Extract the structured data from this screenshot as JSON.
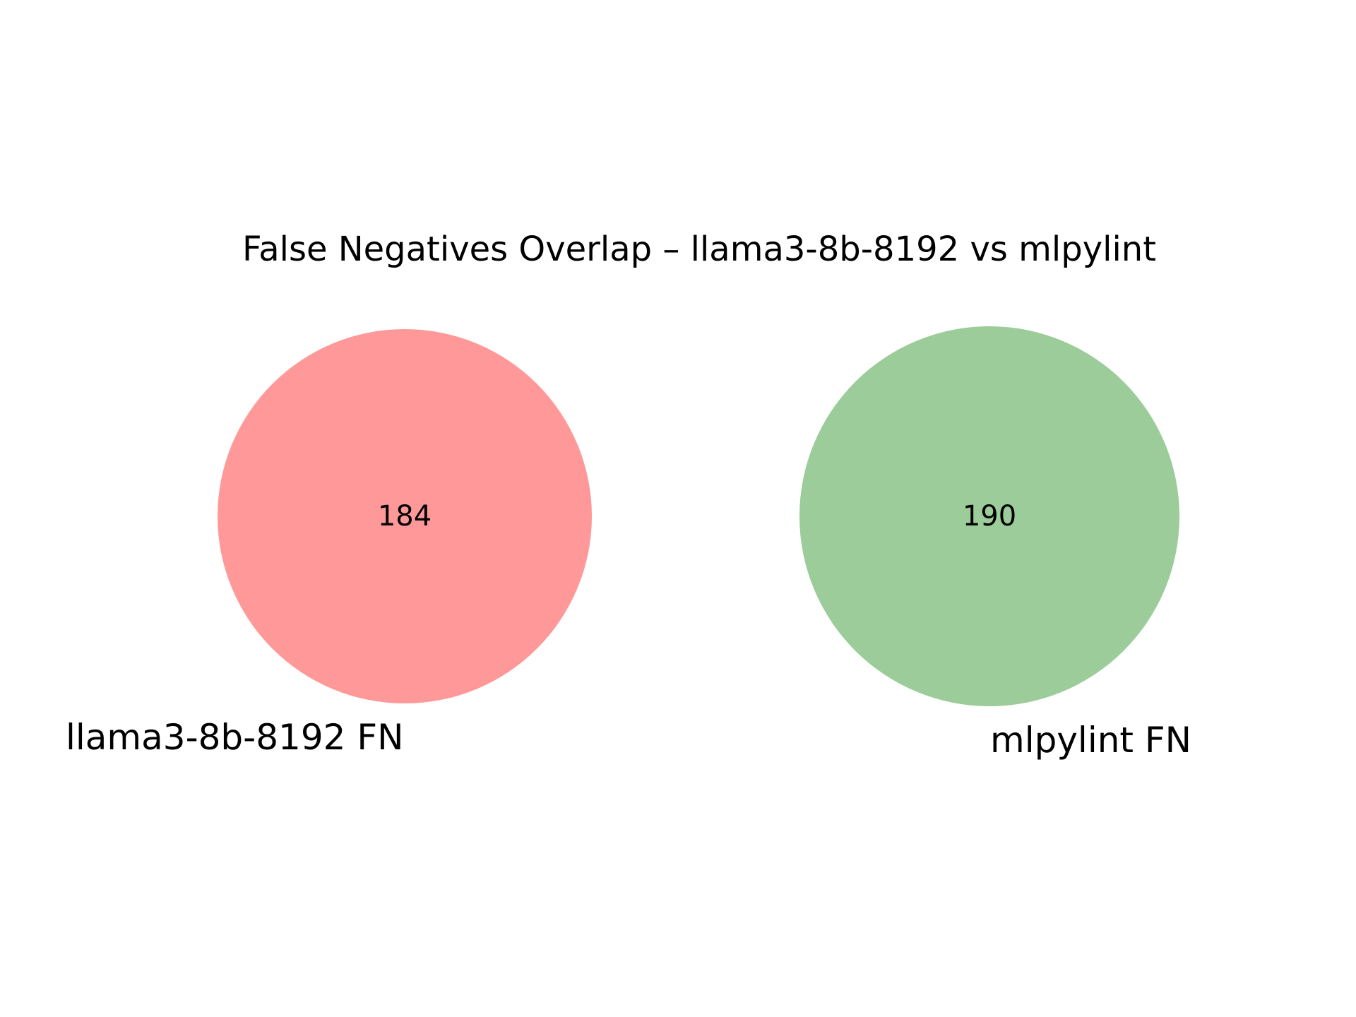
{
  "chart_data": {
    "type": "venn",
    "title": "False Negatives Overlap – llama3-8b-8192 vs mlpylint",
    "sets": [
      {
        "name": "llama3-8b-8192 FN",
        "only_count": 184,
        "color": "#ff9999"
      },
      {
        "name": "mlpylint FN",
        "only_count": 190,
        "color": "#9ccc9a"
      }
    ],
    "intersection": 0
  }
}
